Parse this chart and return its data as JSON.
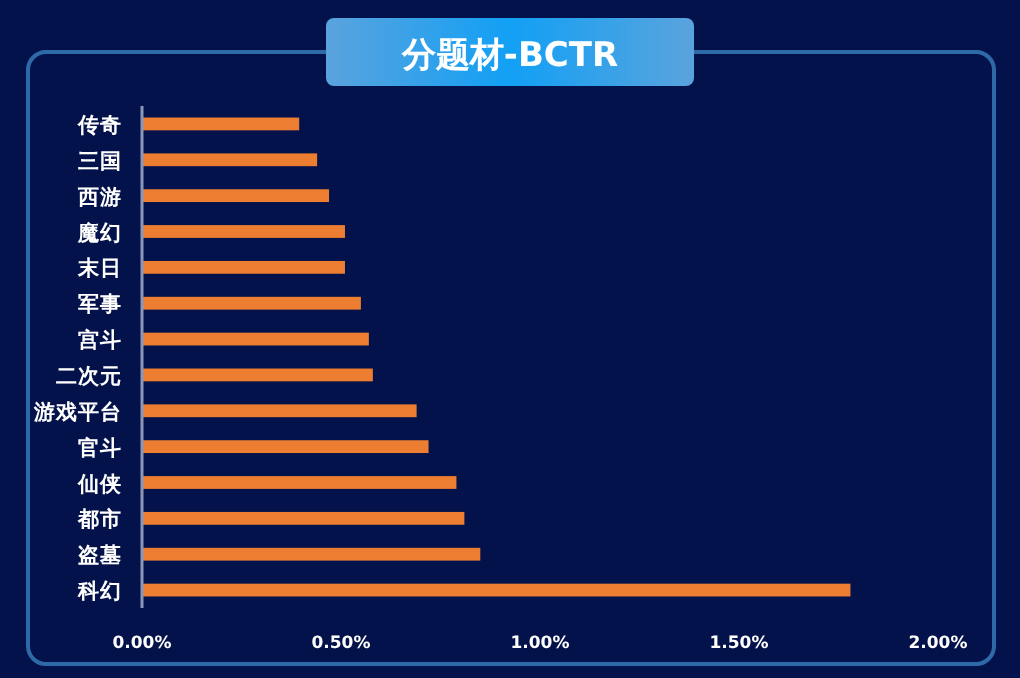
{
  "chart_data": {
    "type": "bar",
    "orientation": "horizontal",
    "title": "分题材-BCTR",
    "categories": [
      "传奇",
      "三国",
      "西游",
      "魔幻",
      "末日",
      "军事",
      "宫斗",
      "二次元",
      "游戏平台",
      "官斗",
      "仙侠",
      "都市",
      "盗墓",
      "科幻"
    ],
    "values": [
      0.395,
      0.44,
      0.47,
      0.51,
      0.51,
      0.55,
      0.57,
      0.58,
      0.69,
      0.72,
      0.79,
      0.81,
      0.85,
      1.78
    ],
    "color": "#ed7d31",
    "xlim": [
      0,
      2
    ],
    "xticks": [
      {
        "value": 0,
        "label": "0.00%"
      },
      {
        "value": 0.5,
        "label": "0.50%"
      },
      {
        "value": 1,
        "label": "1.00%"
      },
      {
        "value": 1.5,
        "label": "1.50%"
      },
      {
        "value": 2,
        "label": "2.00%"
      }
    ],
    "grid": false
  }
}
